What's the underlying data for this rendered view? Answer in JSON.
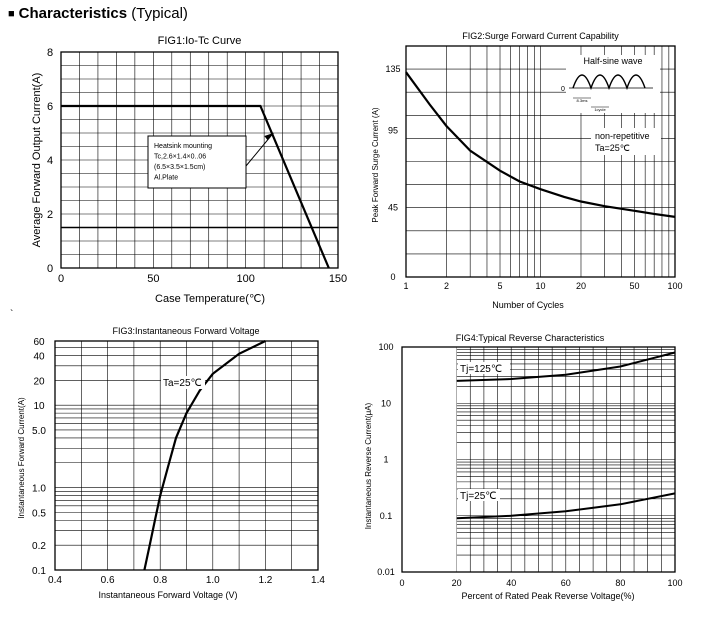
{
  "page": {
    "heading": "Characteristics",
    "heading_qualifier": "(Typical)",
    "bullet": "■",
    "stray_mark": "`"
  },
  "chart_data": [
    {
      "id": "fig1",
      "type": "line",
      "title": "FIG1:Io-Tc Curve",
      "xlabel": "Case Temperature(℃)",
      "ylabel": "Average Forward Output Current(A)",
      "xlim": [
        0,
        150
      ],
      "ylim": [
        0,
        8
      ],
      "x_ticks": [
        0,
        50,
        100,
        150
      ],
      "y_ticks": [
        0,
        2,
        4,
        6,
        8
      ],
      "grid": true,
      "series": [
        {
          "x": [
            0,
            105,
            108,
            145
          ],
          "y": [
            6,
            6,
            6,
            0
          ]
        }
      ],
      "reference_lines": [
        {
          "y": 1.5
        }
      ],
      "annotation": {
        "lines": [
          "Heatsink mounting",
          "Tc,2.6×1.4×0..06",
          "(6.5×3.5×1.5cm)",
          "Al.Plate"
        ],
        "arrow_to": [
          115,
          5.0
        ]
      }
    },
    {
      "id": "fig2",
      "type": "line",
      "title": "FIG2:Surge Forward Current Capability",
      "xlabel": "Number of Cycles",
      "ylabel": "Peak Forward Surge Current (A)",
      "x_scale": "log",
      "xlim": [
        1,
        100
      ],
      "ylim": [
        0,
        150
      ],
      "x_ticks": [
        1,
        2,
        5,
        10,
        20,
        50,
        100
      ],
      "y_ticks": [
        0,
        45,
        95,
        135
      ],
      "grid": true,
      "series": [
        {
          "x": [
            1,
            1.5,
            2,
            3,
            5,
            7,
            10,
            15,
            20,
            30,
            50,
            70,
            100
          ],
          "y": [
            133,
            112,
            98,
            82,
            69,
            62,
            57,
            52,
            49,
            46,
            43,
            41,
            39
          ]
        }
      ],
      "inset": {
        "title": "Half-sine wave",
        "zero_label": "0",
        "label_a": "8.3ms",
        "label_b": "1cycle"
      },
      "annotation_lines": [
        "non-repetitive",
        "Ta=25℃"
      ]
    },
    {
      "id": "fig3",
      "type": "line",
      "title": "FIG3:Instantaneous Forward Voltage",
      "xlabel": "Instantaneous Forward Voltage (V)",
      "ylabel": "Instantaneous Forward Current(A)",
      "y_scale": "log",
      "xlim": [
        0.4,
        1.4
      ],
      "ylim": [
        0.1,
        60
      ],
      "x_ticks": [
        0.4,
        0.6,
        0.8,
        1.0,
        1.2,
        1.4
      ],
      "x_tick_labels": [
        "0.4",
        "0.6",
        "0.8",
        "1.0",
        "1.2",
        "1.4"
      ],
      "y_ticks": [
        0.1,
        0.2,
        0.5,
        1,
        5,
        10,
        20,
        40,
        60
      ],
      "y_tick_labels": [
        "0.1",
        "0.2",
        "0.5",
        "1.0",
        "5.0",
        "10",
        "20",
        "40",
        "60"
      ],
      "grid": true,
      "series": [
        {
          "x": [
            0.74,
            0.76,
            0.78,
            0.8,
            0.83,
            0.86,
            0.9,
            0.95,
            1.0,
            1.1,
            1.2
          ],
          "y": [
            0.1,
            0.2,
            0.4,
            0.8,
            1.8,
            4,
            8,
            15,
            24,
            42,
            60
          ]
        }
      ],
      "annotation": "Ta=25℃"
    },
    {
      "id": "fig4",
      "type": "line",
      "title": "FIG4:Typical Reverse Characteristics",
      "xlabel": "Percent of Rated Peak Reverse Voltage(%)",
      "ylabel": "Instantaneous Reverse Current(μA)",
      "y_scale": "log",
      "xlim": [
        0,
        100
      ],
      "ylim": [
        0.01,
        100
      ],
      "x_ticks": [
        0,
        20,
        40,
        60,
        80,
        100
      ],
      "y_ticks": [
        0.01,
        0.1,
        1,
        10,
        100
      ],
      "y_tick_labels": [
        "0.01",
        "0.1",
        "1",
        "10",
        "100"
      ],
      "grid": true,
      "series": [
        {
          "name": "Tj=125℃",
          "x": [
            20,
            40,
            60,
            80,
            100
          ],
          "y": [
            25,
            27,
            32,
            45,
            80
          ]
        },
        {
          "name": "Tj=25℃",
          "x": [
            20,
            40,
            60,
            80,
            100
          ],
          "y": [
            0.09,
            0.1,
            0.12,
            0.16,
            0.25
          ]
        }
      ]
    }
  ]
}
